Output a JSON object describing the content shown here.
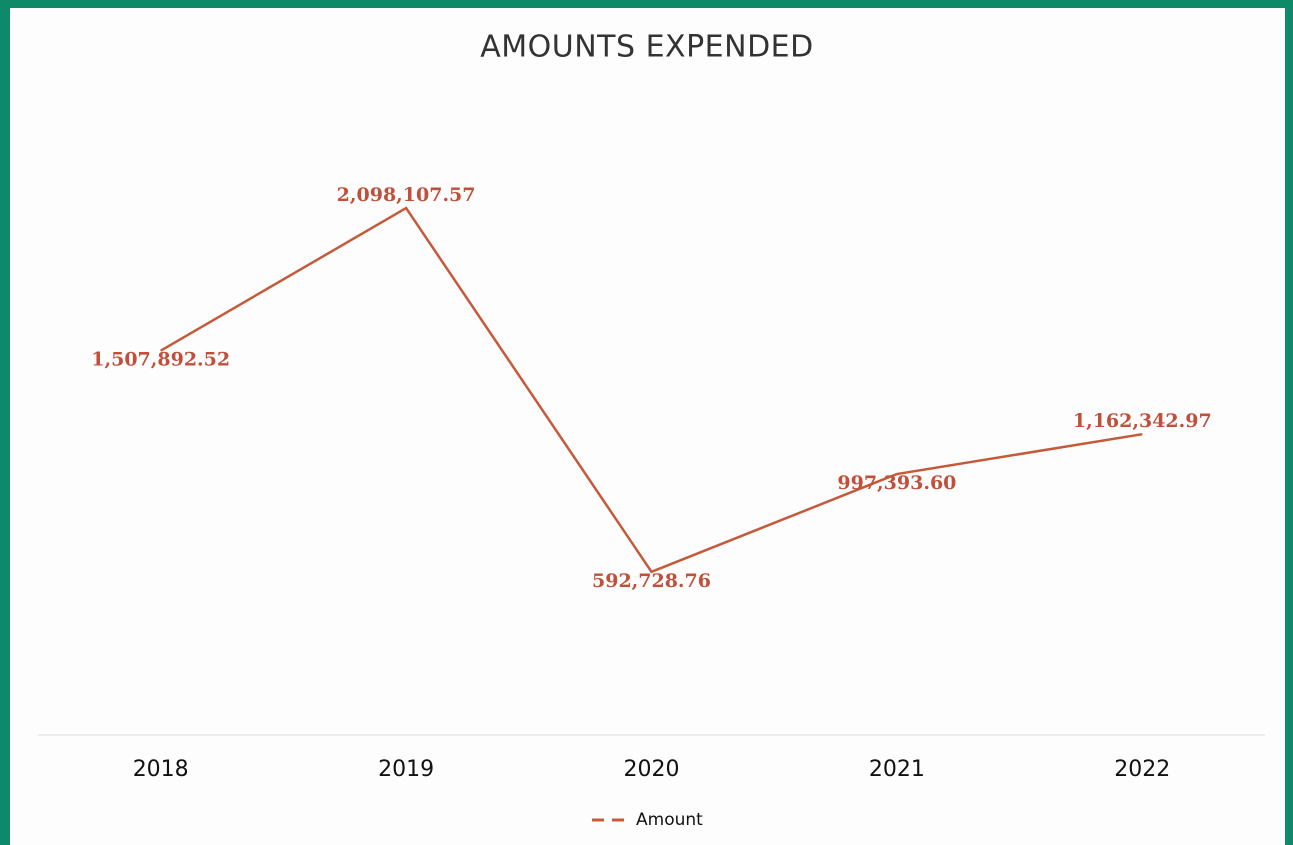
{
  "chart_data": {
    "type": "line",
    "title": "AMOUNTS EXPENDED",
    "categories": [
      "2018",
      "2019",
      "2020",
      "2021",
      "2022"
    ],
    "series": [
      {
        "name": "Amount",
        "color": "#c55a3a",
        "values": [
          1507892.52,
          2098107.57,
          592728.76,
          997393.6,
          1162342.97
        ],
        "value_labels": [
          "1,507,892.52",
          "2,098,107.57",
          "592,728.76",
          "997,393.60",
          "1,162,342.97"
        ]
      }
    ],
    "ylim": [
      0,
      2500000
    ],
    "legend": "bottom"
  }
}
